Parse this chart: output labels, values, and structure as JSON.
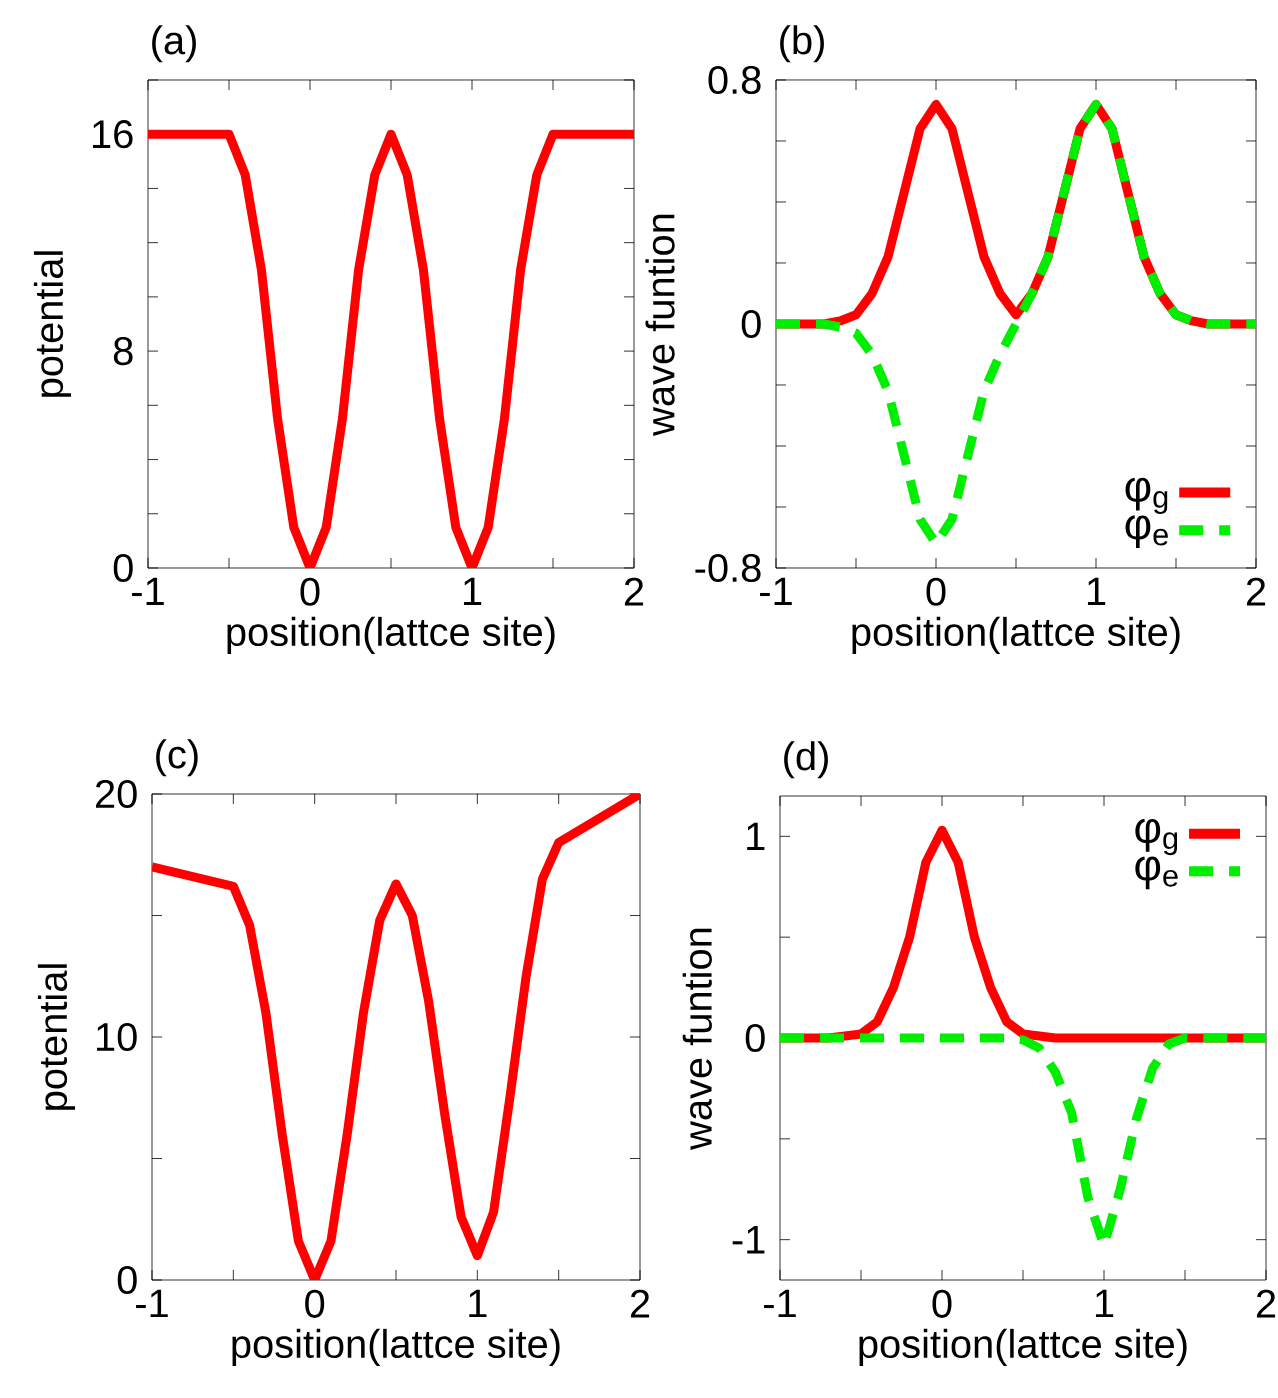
{
  "chart_data": [
    {
      "type": "line",
      "title": "(a)",
      "xlabel": "position(lattce site)",
      "ylabel": "potential",
      "marker": "none",
      "x": [
        -1,
        -0.5,
        -0.4,
        -0.3,
        -0.2,
        -0.1,
        0,
        0.1,
        0.2,
        0.3,
        0.4,
        0.5,
        0.6,
        0.7,
        0.8,
        0.9,
        1,
        1.1,
        1.2,
        1.3,
        1.4,
        1.5,
        2
      ],
      "series": [
        {
          "color": "#ff0000",
          "line_style": "solid",
          "values": [
            16,
            16,
            14.5,
            11,
            5.5,
            1.5,
            0,
            1.5,
            5.5,
            11,
            14.5,
            16,
            14.5,
            11,
            5.5,
            1.5,
            0,
            1.5,
            5.5,
            11,
            14.5,
            16,
            16
          ]
        }
      ],
      "xlim": [
        -1,
        2
      ],
      "ylim": [
        0,
        18
      ],
      "xticks": [
        -1,
        {
          "value": -0.5,
          "label": null
        },
        0,
        {
          "value": 0.5,
          "label": null
        },
        1,
        {
          "value": 1.5,
          "label": null
        },
        2
      ],
      "yticks": [
        0,
        {
          "value": 2,
          "label": null
        },
        {
          "value": 4,
          "label": null
        },
        {
          "value": 6,
          "label": null
        },
        8,
        {
          "value": 10,
          "label": null
        },
        {
          "value": 12,
          "label": null
        },
        {
          "value": 14,
          "label": null
        },
        16,
        {
          "value": 18,
          "label": null
        }
      ]
    },
    {
      "type": "line",
      "title": "(b)",
      "xlabel": "position(lattce site)",
      "ylabel": "wave funtion",
      "marker": "none",
      "legend": "bottom right",
      "x": [
        -1,
        -0.7,
        -0.6,
        -0.5,
        -0.4,
        -0.3,
        -0.2,
        -0.1,
        0,
        0.1,
        0.2,
        0.3,
        0.4,
        0.5,
        0.6,
        0.7,
        0.8,
        0.9,
        1,
        1.1,
        1.2,
        1.3,
        1.4,
        1.5,
        1.6,
        1.7,
        2
      ],
      "series": [
        {
          "name": "φ$_{g}$",
          "color": "#ff0000",
          "line_style": "solid",
          "values": [
            0,
            0,
            0.01,
            0.03,
            0.1,
            0.22,
            0.43,
            0.64,
            0.72,
            0.64,
            0.43,
            0.22,
            0.1,
            0.03,
            0.1,
            0.22,
            0.43,
            0.64,
            0.72,
            0.64,
            0.43,
            0.22,
            0.1,
            0.03,
            0.01,
            0,
            0
          ]
        },
        {
          "name": "φ$_{e}$",
          "color": "#00ee00",
          "line_style": "dashed",
          "values": [
            0,
            0,
            -0.01,
            -0.03,
            -0.1,
            -0.22,
            -0.43,
            -0.64,
            -0.72,
            -0.64,
            -0.43,
            -0.22,
            -0.1,
            0,
            0.1,
            0.22,
            0.43,
            0.64,
            0.72,
            0.64,
            0.43,
            0.22,
            0.1,
            0.03,
            0.01,
            0,
            0
          ]
        }
      ],
      "xlim": [
        -1,
        2
      ],
      "ylim": [
        -0.8,
        0.8
      ],
      "xticks": [
        -1,
        {
          "value": -0.5,
          "label": null
        },
        0,
        {
          "value": 0.5,
          "label": null
        },
        1,
        {
          "value": 1.5,
          "label": null
        },
        2
      ],
      "yticks": [
        -0.8,
        {
          "value": -0.6,
          "label": null
        },
        {
          "value": -0.4,
          "label": null
        },
        {
          "value": -0.2,
          "label": null
        },
        0,
        {
          "value": 0.2,
          "label": null
        },
        {
          "value": 0.4,
          "label": null
        },
        {
          "value": 0.6,
          "label": null
        },
        0.8
      ]
    },
    {
      "type": "line",
      "title": "(c)",
      "xlabel": "position(lattce site)",
      "ylabel": "potential",
      "marker": "none",
      "x": [
        -1,
        -0.5,
        -0.4,
        -0.3,
        -0.2,
        -0.1,
        0,
        0.1,
        0.2,
        0.3,
        0.4,
        0.5,
        0.6,
        0.7,
        0.8,
        0.9,
        1,
        1.1,
        1.2,
        1.3,
        1.4,
        1.5,
        2
      ],
      "series": [
        {
          "color": "#ff0000",
          "line_style": "solid",
          "values": [
            17,
            16.2,
            14.6,
            11,
            6,
            1.6,
            0,
            1.6,
            6,
            11,
            14.8,
            16.3,
            15,
            11.5,
            6.8,
            2.6,
            1,
            2.8,
            7.5,
            12.5,
            16.5,
            18,
            20
          ]
        }
      ],
      "xlim": [
        -1,
        2
      ],
      "ylim": [
        0,
        20
      ],
      "xticks": [
        -1,
        {
          "value": -0.5,
          "label": null
        },
        0,
        {
          "value": 0.5,
          "label": null
        },
        1,
        {
          "value": 1.5,
          "label": null
        },
        2
      ],
      "yticks": [
        0,
        {
          "value": 5,
          "label": null
        },
        10,
        {
          "value": 15,
          "label": null
        },
        20
      ]
    },
    {
      "type": "line",
      "title": "(d)",
      "xlabel": "position(lattce site)",
      "ylabel": "wave funtion",
      "marker": "none",
      "legend": "top right",
      "x": [
        -1,
        -0.7,
        -0.6,
        -0.5,
        -0.4,
        -0.3,
        -0.2,
        -0.1,
        0,
        0.1,
        0.2,
        0.3,
        0.4,
        0.5,
        0.6,
        0.7,
        0.8,
        0.9,
        1,
        1.1,
        1.2,
        1.3,
        1.4,
        1.5,
        2
      ],
      "series": [
        {
          "name": "φ$_{g}$",
          "color": "#ff0000",
          "line_style": "solid",
          "values": [
            0,
            0,
            0.01,
            0.02,
            0.08,
            0.25,
            0.5,
            0.87,
            1.03,
            0.87,
            0.5,
            0.25,
            0.08,
            0.02,
            0.01,
            0,
            0,
            0,
            0,
            0,
            0,
            0,
            0,
            0,
            0
          ]
        },
        {
          "name": "φ$_{e}$",
          "color": "#00ee00",
          "line_style": "dashed",
          "values": [
            0,
            0,
            0,
            0,
            0,
            0,
            0,
            0,
            0,
            0,
            0,
            0,
            0,
            -0.01,
            -0.05,
            -0.17,
            -0.37,
            -0.79,
            -1.03,
            -0.75,
            -0.4,
            -0.15,
            -0.03,
            0,
            0
          ]
        }
      ],
      "xlim": [
        -1,
        2
      ],
      "ylim": [
        -1.2,
        1.2
      ],
      "xticks": [
        -1,
        {
          "value": -0.5,
          "label": null
        },
        0,
        {
          "value": 0.5,
          "label": null
        },
        1,
        {
          "value": 1.5,
          "label": null
        },
        2
      ],
      "yticks": [
        -1,
        {
          "value": -0.5,
          "label": null
        },
        0,
        {
          "value": 0.5,
          "label": null
        },
        1
      ]
    }
  ]
}
